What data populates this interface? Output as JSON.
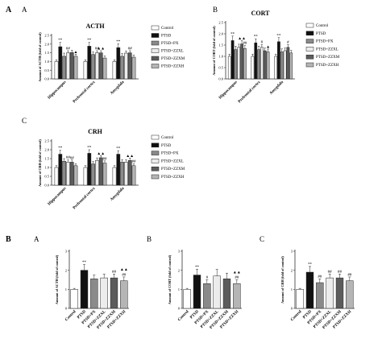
{
  "figure": {
    "section_a_label": "A",
    "section_b_label": "B"
  },
  "palette": {
    "Control": "#ffffff",
    "PTSD": "#111111",
    "PTSD+PX": "#8a8a8a",
    "PTSD+ZZXL": "#ececec",
    "PTSD+ZZXM": "#5c5c5c",
    "PTSD+ZZXH": "#b5b5b5",
    "bar_stroke": "#222222",
    "axis": "#333333"
  },
  "chart_data": [
    {
      "panel": "A",
      "type": "bar",
      "title": "ACTH",
      "ylabel": "Amount of ACTH (fold of control)",
      "ylim": [
        0,
        2.5
      ],
      "yticks": [
        0.0,
        0.5,
        1.0,
        1.5,
        2.0,
        2.5
      ],
      "categories": [
        "Hippocampus",
        "Prefrontal cortex",
        "Amygdala"
      ],
      "series": [
        {
          "name": "Control",
          "values": [
            1.0,
            1.0,
            1.0
          ]
        },
        {
          "name": "PTSD",
          "values": [
            1.85,
            1.88,
            1.8
          ]
        },
        {
          "name": "PTSD+PX",
          "values": [
            1.3,
            1.4,
            1.3
          ]
        },
        {
          "name": "PTSD+ZZXL",
          "values": [
            1.5,
            1.5,
            1.48
          ]
        },
        {
          "name": "PTSD+ZZXM",
          "values": [
            1.52,
            1.5,
            1.5
          ]
        },
        {
          "name": "PTSD+ZZXH",
          "values": [
            1.3,
            1.2,
            1.25
          ]
        }
      ],
      "errors": [
        [
          0.1,
          0.1,
          0.1
        ],
        [
          0.25,
          0.22,
          0.22
        ],
        [
          0.18,
          0.15,
          0.16
        ],
        [
          0.12,
          0.12,
          0.12
        ],
        [
          0.13,
          0.12,
          0.12
        ],
        [
          0.12,
          0.12,
          0.12
        ]
      ],
      "annotations": [
        {
          "text": "**",
          "category": 0,
          "series": 1
        },
        {
          "text": "##",
          "category": 0,
          "series": 3
        },
        {
          "text": "▲",
          "category": 0,
          "series": 5
        },
        {
          "text": "**",
          "category": 1,
          "series": 1
        },
        {
          "text": "##",
          "category": 1,
          "series": 3
        },
        {
          "text": "▲▲",
          "category": 1,
          "series": 4
        },
        {
          "text": "**",
          "category": 2,
          "series": 1
        },
        {
          "text": "##",
          "category": 2,
          "series": 4
        }
      ],
      "legend": [
        "Control",
        "PTSD",
        "PTSD+PX",
        "PTSD+ZZXL",
        "PTSD+ZZXM",
        "PTSD+ZZXH"
      ],
      "legend_position": "right"
    },
    {
      "panel": "B",
      "type": "bar",
      "title": "CORT",
      "ylabel": "Amount of CORT (fold of control)",
      "ylim": [
        0,
        2.5
      ],
      "yticks": [
        0.0,
        0.5,
        1.0,
        1.5,
        2.0,
        2.5
      ],
      "categories": [
        "Hippocampus",
        "Prefrontal cortex",
        "Amygdala"
      ],
      "series": [
        {
          "name": "Control",
          "values": [
            1.0,
            1.0,
            1.0
          ]
        },
        {
          "name": "PTSD",
          "values": [
            1.7,
            1.6,
            1.65
          ]
        },
        {
          "name": "PTSD+PX",
          "values": [
            1.3,
            1.3,
            1.2
          ]
        },
        {
          "name": "PTSD+ZZXL",
          "values": [
            1.4,
            1.4,
            1.25
          ]
        },
        {
          "name": "PTSD+ZZXM",
          "values": [
            1.55,
            1.25,
            1.4
          ]
        },
        {
          "name": "PTSD+ZZXH",
          "values": [
            1.35,
            1.2,
            1.15
          ]
        }
      ],
      "errors": [
        [
          0.1,
          0.1,
          0.1
        ],
        [
          0.2,
          0.18,
          0.18
        ],
        [
          0.15,
          0.15,
          0.13
        ],
        [
          0.14,
          0.13,
          0.12
        ],
        [
          0.15,
          0.12,
          0.12
        ],
        [
          0.13,
          0.12,
          0.11
        ]
      ],
      "annotations": [
        {
          "text": "**",
          "category": 0,
          "series": 1
        },
        {
          "text": "▲▲",
          "category": 0,
          "series": 4
        },
        {
          "text": "##",
          "category": 0,
          "series": 5
        },
        {
          "text": "**",
          "category": 1,
          "series": 1
        },
        {
          "text": "#",
          "category": 1,
          "series": 3
        },
        {
          "text": "▲",
          "category": 1,
          "series": 5
        },
        {
          "text": "**",
          "category": 2,
          "series": 1
        },
        {
          "text": "#",
          "category": 2,
          "series": 4
        }
      ],
      "legend": [
        "Control",
        "PTSD",
        "PTSD+PX",
        "PTSD+ZZXL",
        "PTSD+ZZXM",
        "PTSD+ZZXH"
      ],
      "legend_position": "right"
    },
    {
      "panel": "C",
      "type": "bar",
      "title": "CRH",
      "ylabel": "Amount of CRH (fold of control)",
      "ylim": [
        0,
        2.5
      ],
      "yticks": [
        0.0,
        0.5,
        1.0,
        1.5,
        2.0,
        2.5
      ],
      "categories": [
        "Hippocampus",
        "Prefrontal cortex",
        "Amygdala"
      ],
      "series": [
        {
          "name": "Control",
          "values": [
            1.0,
            1.0,
            1.0
          ]
        },
        {
          "name": "PTSD",
          "values": [
            1.75,
            1.8,
            1.75
          ]
        },
        {
          "name": "PTSD+PX",
          "values": [
            1.35,
            1.2,
            1.3
          ]
        },
        {
          "name": "PTSD+ZZXL",
          "values": [
            1.3,
            1.4,
            1.3
          ]
        },
        {
          "name": "PTSD+ZZXM",
          "values": [
            1.3,
            1.55,
            1.4
          ]
        },
        {
          "name": "PTSD+ZZXH",
          "values": [
            1.1,
            1.25,
            1.1
          ]
        }
      ],
      "errors": [
        [
          0.1,
          0.1,
          0.1
        ],
        [
          0.22,
          0.2,
          0.2
        ],
        [
          0.15,
          0.14,
          0.14
        ],
        [
          0.13,
          0.14,
          0.13
        ],
        [
          0.12,
          0.12,
          0.13
        ],
        [
          0.11,
          0.12,
          0.11
        ]
      ],
      "annotations": [
        {
          "text": "**",
          "category": 0,
          "series": 1
        },
        {
          "text": "##",
          "category": 0,
          "series": 3
        },
        {
          "text": "##",
          "category": 0,
          "series": 4
        },
        {
          "text": "**",
          "category": 1,
          "series": 1
        },
        {
          "text": "▲▲",
          "category": 1,
          "series": 4
        },
        {
          "text": "##",
          "category": 1,
          "series": 5
        },
        {
          "text": "**",
          "category": 2,
          "series": 1
        },
        {
          "text": "▲▲",
          "category": 2,
          "series": 4
        },
        {
          "text": "##",
          "category": 2,
          "series": 5
        }
      ],
      "legend": [
        "Control",
        "PTSD",
        "PTSD+PX",
        "PTSD+ZZXL",
        "PTSD+ZZXM",
        "PTSD+ZZXH"
      ],
      "legend_position": "right"
    },
    {
      "panel": "A",
      "type": "bar",
      "title": "",
      "ylabel": "Amount of ACTH (fold of control)",
      "ylim": [
        0,
        3
      ],
      "yticks": [
        0,
        1,
        2,
        3
      ],
      "categories": [
        "Control",
        "PTSD",
        "PTSD+PX",
        "PTSD+ZZXL",
        "PTSD+ZZXM",
        "PTSD+ZZXH"
      ],
      "values": [
        1.0,
        2.0,
        1.55,
        1.6,
        1.6,
        1.45
      ],
      "errors": [
        0.05,
        0.3,
        0.2,
        0.2,
        0.2,
        0.2
      ],
      "annotations": [
        {
          "text": "**",
          "category": 1
        },
        {
          "text": "##",
          "category": 4
        },
        {
          "text": "##",
          "category": 5
        },
        {
          "text": "▲▲",
          "category": 5
        }
      ]
    },
    {
      "panel": "B",
      "type": "bar",
      "title": "",
      "ylabel": "Amount of CORT (fold of control)",
      "ylim": [
        0,
        3
      ],
      "yticks": [
        0,
        1,
        2,
        3
      ],
      "categories": [
        "Control",
        "PTSD",
        "PTSD+PX",
        "PTSD+ZZXL",
        "PTSD+ZZXM",
        "PTSD+ZZXH"
      ],
      "values": [
        1.0,
        1.75,
        1.3,
        1.7,
        1.55,
        1.3
      ],
      "errors": [
        0.05,
        0.3,
        0.2,
        0.35,
        0.3,
        0.2
      ],
      "annotations": [
        {
          "text": "**",
          "category": 1
        },
        {
          "text": "#",
          "category": 2
        },
        {
          "text": "##",
          "category": 5
        },
        {
          "text": "▲▲",
          "category": 5
        }
      ]
    },
    {
      "panel": "C",
      "type": "bar",
      "title": "",
      "ylabel": "Amount of CRH (fold of control)",
      "ylim": [
        0,
        3
      ],
      "yticks": [
        0,
        1,
        2,
        3
      ],
      "categories": [
        "Control",
        "PTSD",
        "PTSD+PX",
        "PTSD+ZZXL",
        "PTSD+ZZXM",
        "PTSD+ZZXH"
      ],
      "values": [
        1.0,
        1.9,
        1.35,
        1.6,
        1.6,
        1.45
      ],
      "errors": [
        0.05,
        0.3,
        0.2,
        0.2,
        0.2,
        0.2
      ],
      "annotations": [
        {
          "text": "**",
          "category": 1
        },
        {
          "text": "##",
          "category": 2
        },
        {
          "text": "##",
          "category": 3
        },
        {
          "text": "##",
          "category": 4
        },
        {
          "text": "##",
          "category": 5
        }
      ]
    }
  ]
}
